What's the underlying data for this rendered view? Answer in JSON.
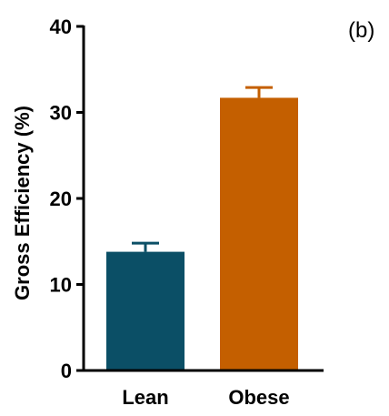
{
  "panel_label": "(b)",
  "chart_data": {
    "type": "bar",
    "categories": [
      "Lean",
      "Obese"
    ],
    "values": [
      13.8,
      31.7
    ],
    "error_upper": [
      14.8,
      32.9
    ],
    "colors": [
      "#0b4f66",
      "#c45f00"
    ],
    "ylabel": "Gross Efficiency (%)",
    "xlabel": "",
    "ylim": [
      0,
      40
    ],
    "yticks": [
      0,
      10,
      20,
      30,
      40
    ],
    "grid": false,
    "legend": "none"
  }
}
